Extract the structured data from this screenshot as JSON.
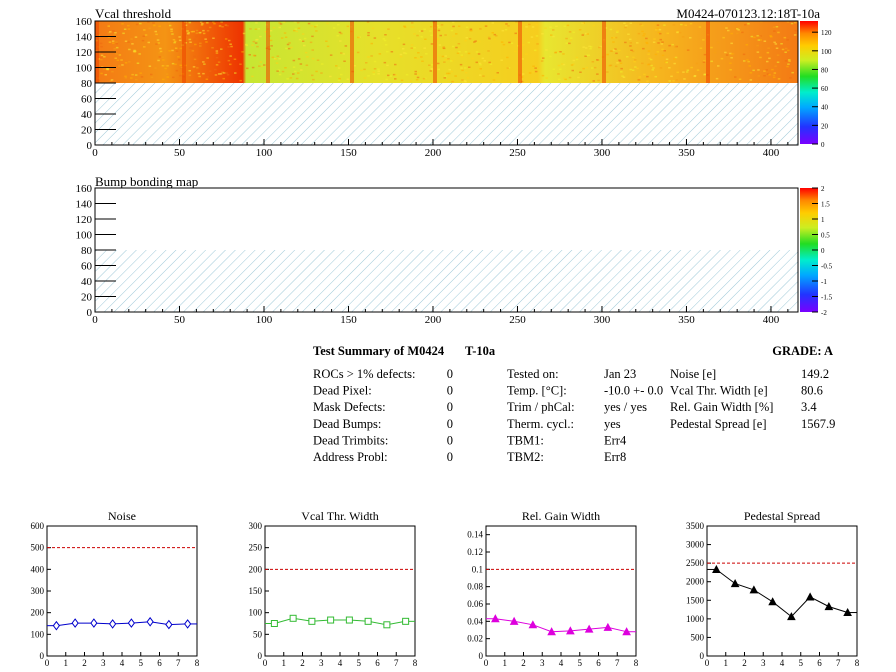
{
  "top_panel": {
    "title": "Vcal threshold",
    "id_label": "M0424-070123.12:18T-10a",
    "x_ticks": [
      "0",
      "50",
      "100",
      "150",
      "200",
      "250",
      "300",
      "350",
      "400"
    ],
    "y_ticks": [
      "0",
      "20",
      "40",
      "60",
      "80",
      "100",
      "120",
      "140",
      "160"
    ],
    "colorbar_ticks": [
      "0",
      "20",
      "40",
      "60",
      "80",
      "100",
      "120"
    ],
    "colors": {
      "hatch": "#9fc9d8",
      "low": "#7a00ff",
      "high": "#ff0000"
    }
  },
  "bump_panel": {
    "title": "Bump bonding map",
    "x_ticks": [
      "0",
      "50",
      "100",
      "150",
      "200",
      "250",
      "300",
      "350",
      "400"
    ],
    "y_ticks": [
      "0",
      "20",
      "40",
      "60",
      "80",
      "100",
      "120",
      "140",
      "160"
    ],
    "colorbar_ticks": [
      "-2",
      "-1.5",
      "-1",
      "-0.5",
      "0",
      "0.5",
      "1",
      "1.5",
      "2"
    ]
  },
  "summary": {
    "title": "Test Summary of M0424",
    "temp_tag": "T-10a",
    "grade": "GRADE:  A",
    "defects": [
      {
        "label": "ROCs > 1% defects:",
        "value": "0"
      },
      {
        "label": "Dead Pixel:",
        "value": "0"
      },
      {
        "label": "Mask Defects:",
        "value": "0"
      },
      {
        "label": "Dead Bumps:",
        "value": "0"
      },
      {
        "label": "Dead Trimbits:",
        "value": "0"
      },
      {
        "label": "Address Probl:",
        "value": "0"
      }
    ],
    "conditions": [
      {
        "label": "Tested on:",
        "value": "Jan 23"
      },
      {
        "label": "Temp. [°C]:",
        "value": "-10.0 +- 0.0"
      },
      {
        "label": "Trim / phCal:",
        "value": "yes / yes"
      },
      {
        "label": "Therm. cycl.:",
        "value": "yes"
      },
      {
        "label": "TBM1:",
        "value": "Err4"
      },
      {
        "label": "TBM2:",
        "value": "Err8"
      }
    ],
    "results": [
      {
        "label": "Noise [e]",
        "value": "149.2"
      },
      {
        "label": "Vcal Thr. Width [e]",
        "value": "80.6"
      },
      {
        "label": "Rel. Gain Width [%]",
        "value": "3.4"
      },
      {
        "label": "Pedestal Spread [e]",
        "value": "1567.9"
      }
    ]
  },
  "chart_data": [
    {
      "type": "line",
      "title": "Noise",
      "x": [
        0.5,
        1.5,
        2.5,
        3.5,
        4.5,
        5.5,
        6.5,
        7.5
      ],
      "series": [
        {
          "values": [
            140,
            152,
            152,
            148,
            152,
            158,
            145,
            148
          ]
        }
      ],
      "xlim": [
        0,
        8
      ],
      "ylim": [
        0,
        600
      ],
      "x_ticks": [
        "0",
        "1",
        "2",
        "3",
        "4",
        "5",
        "6",
        "7",
        "8"
      ],
      "y_ticks": [
        "0",
        "100",
        "200",
        "300",
        "400",
        "500",
        "600"
      ],
      "limit": 500,
      "marker": "diamond-open",
      "color": "#0000cc"
    },
    {
      "type": "line",
      "title": "Vcal Thr. Width",
      "x": [
        0.5,
        1.5,
        2.5,
        3.5,
        4.5,
        5.5,
        6.5,
        7.5
      ],
      "series": [
        {
          "values": [
            75,
            87,
            80,
            83,
            83,
            80,
            72,
            80
          ]
        }
      ],
      "xlim": [
        0,
        8
      ],
      "ylim": [
        0,
        300
      ],
      "x_ticks": [
        "0",
        "1",
        "2",
        "3",
        "4",
        "5",
        "6",
        "7",
        "8"
      ],
      "y_ticks": [
        "0",
        "50",
        "100",
        "150",
        "200",
        "250",
        "300"
      ],
      "limit": 200,
      "marker": "square-open",
      "color": "#33bb33"
    },
    {
      "type": "line",
      "title": "Rel. Gain Width",
      "x": [
        0.5,
        1.5,
        2.5,
        3.5,
        4.5,
        5.5,
        6.5,
        7.5
      ],
      "series": [
        {
          "values": [
            0.043,
            0.04,
            0.036,
            0.028,
            0.029,
            0.031,
            0.033,
            0.028
          ]
        }
      ],
      "xlim": [
        0,
        8
      ],
      "ylim": [
        0,
        0.15
      ],
      "x_ticks": [
        "0",
        "1",
        "2",
        "3",
        "4",
        "5",
        "6",
        "7",
        "8"
      ],
      "y_ticks": [
        "0",
        "0.02",
        "0.04",
        "0.06",
        "0.08",
        "0.1",
        "0.12",
        "0.14"
      ],
      "limit": 0.1,
      "marker": "triangle",
      "color": "#dd00dd"
    },
    {
      "type": "line",
      "title": "Pedestal Spread",
      "x": [
        0.5,
        1.5,
        2.5,
        3.5,
        4.5,
        5.5,
        6.5,
        7.5
      ],
      "series": [
        {
          "values": [
            2330,
            1950,
            1780,
            1460,
            1060,
            1590,
            1330,
            1170
          ]
        }
      ],
      "xlim": [
        0,
        8
      ],
      "ylim": [
        0,
        3500
      ],
      "x_ticks": [
        "0",
        "1",
        "2",
        "3",
        "4",
        "5",
        "6",
        "7",
        "8"
      ],
      "y_ticks": [
        "0",
        "500",
        "1000",
        "1500",
        "2000",
        "2500",
        "3000",
        "3500"
      ],
      "limit": 2500,
      "marker": "triangle",
      "color": "#000000"
    }
  ]
}
